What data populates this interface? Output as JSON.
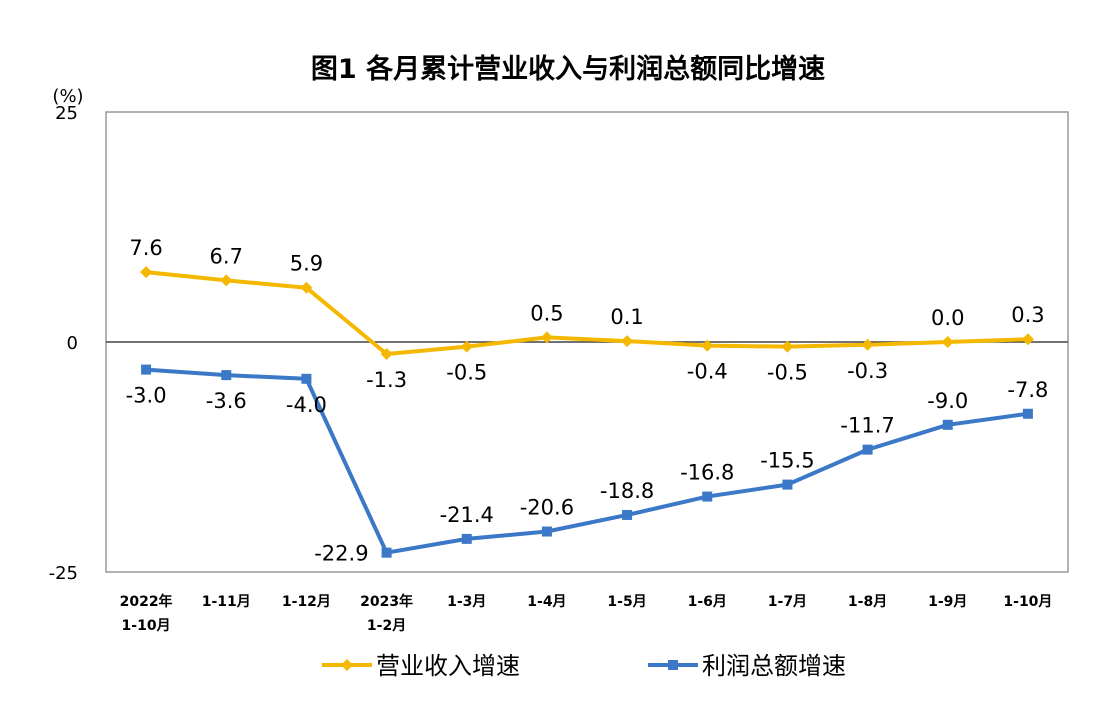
{
  "chart_data": {
    "type": "line",
    "title": "图1  各月累计营业收入与利润总额同比增速",
    "ylabel": "(%)",
    "ylim": [
      -25,
      25
    ],
    "yticks": [
      25,
      0,
      -25
    ],
    "grid": false,
    "legend_position": "bottom",
    "categories": [
      "2022年\n1-10月",
      "1-11月",
      "1-12月",
      "2023年\n1-2月",
      "1-3月",
      "1-4月",
      "1-5月",
      "1-6月",
      "1-7月",
      "1-8月",
      "1-9月",
      "1-10月"
    ],
    "series": [
      {
        "name": "营业收入增速",
        "color": "#F5B800",
        "marker": "diamond",
        "values": [
          7.6,
          6.7,
          5.9,
          -1.3,
          -0.5,
          0.5,
          0.1,
          -0.4,
          -0.5,
          -0.3,
          0.0,
          0.3
        ],
        "labels": [
          "7.6",
          "6.7",
          "5.9",
          "-1.3",
          "-0.5",
          "0.5",
          "0.1",
          "-0.4",
          "-0.5",
          "-0.3",
          "0.0",
          "0.3"
        ]
      },
      {
        "name": "利润总额增速",
        "color": "#3B78C8",
        "marker": "square",
        "values": [
          -3.0,
          -3.6,
          -4.0,
          -22.9,
          -21.4,
          -20.6,
          -18.8,
          -16.8,
          -15.5,
          -11.7,
          -9.0,
          -7.8
        ],
        "labels": [
          "-3.0",
          "-3.6",
          "-4.0",
          "-22.9",
          "-21.4",
          "-20.6",
          "-18.8",
          "-16.8",
          "-15.5",
          "-11.7",
          "-9.0",
          "-7.8"
        ]
      }
    ]
  }
}
